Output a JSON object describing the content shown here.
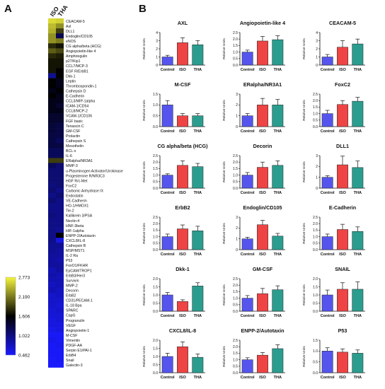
{
  "panels": {
    "a": "A",
    "b": "B"
  },
  "heatmap": {
    "columns": [
      "ISO",
      "THA"
    ],
    "rows": [
      "CEACAM-5",
      "Axl",
      "DLL1",
      "Endoglin/CD105",
      "eNOS",
      "CG alpha/beta (HCG)",
      "Angiopoietin-like 4",
      "Amphiregulin",
      "p27/Kip1",
      "CCL7/MCP-3",
      "EGF R/ErbB1",
      "Dkk-1",
      "Leptin",
      "Thrombospondin-1",
      "Cathepsin D",
      "E-Cadherin",
      "CCL3/MIP-1alpha",
      "ICAM-1/CD54",
      "CCL8/MCP-2",
      "VCAM-1/CD106",
      "FGF basic",
      "Tenascin C",
      "GM-CSF",
      "Prolactin",
      "Cathepsin S",
      "Mesothelin",
      "BCL-x",
      "IL-6",
      "ERalpha/NR3A1",
      "MMP-3",
      "u-Plasminogen Activator/Urokinase",
      "Progesterone R/NR3C3",
      "HGF R/c-Met",
      "FoxC2",
      "Carbonic Anhydrase IX",
      "Endostatin",
      "VE-Cadherin",
      "HO-1/HMOX1",
      "Tie-2",
      "Kallikrein 3/PSA",
      "Nectin-4",
      "HNF-3beta",
      "HIF-1alpha",
      "ENPP-2/Autotaxin",
      "CXCL8/IL-8",
      "Cathepsin B",
      "MSP/MST1",
      "IL-2 Ra",
      "P53",
      "FoxO1/FKHR",
      "EpCAM/TROP1",
      "ErbB3/Her3",
      "Survivin",
      "MMP-2",
      "Decorin",
      "ErbB2",
      "CD31/PECAM-1",
      "IL-18 Bpa",
      "SPARC",
      "CapG",
      "Progranulin",
      "VEGF",
      "Angiopoietin-1",
      "M-CSF",
      "Vimentin",
      "PDGF-AA",
      "Serpin E1/PAI-1",
      "ErbB4",
      "Snail",
      "Galectin-3"
    ],
    "values": [
      [
        2.65,
        2.6
      ],
      [
        2.5,
        2.3
      ],
      [
        2.45,
        1.9
      ],
      [
        2.3,
        1.25
      ],
      [
        2.3,
        2.2
      ],
      [
        1.8,
        1.7
      ],
      [
        2.05,
        1.95
      ],
      [
        1.8,
        1.75
      ],
      [
        1.7,
        1.7
      ],
      [
        1.7,
        1.7
      ],
      [
        1.7,
        1.6
      ],
      [
        0.95,
        1.6
      ],
      [
        1.6,
        1.5
      ],
      [
        1.6,
        1.5
      ],
      [
        1.5,
        1.6
      ],
      [
        1.6,
        1.5
      ],
      [
        1.5,
        1.5
      ],
      [
        1.5,
        1.4
      ],
      [
        1.5,
        1.5
      ],
      [
        1.4,
        1.4
      ],
      [
        1.4,
        1.4
      ],
      [
        1.35,
        1.3
      ],
      [
        1.35,
        1.3
      ],
      [
        1.3,
        1.3
      ],
      [
        1.3,
        1.2
      ],
      [
        1.3,
        1.3
      ],
      [
        1.2,
        1.2
      ],
      [
        1.2,
        1.2
      ],
      [
        1.9,
        1.9
      ],
      [
        1.2,
        1.1
      ],
      [
        1.1,
        1.1
      ],
      [
        1.1,
        1.1
      ],
      [
        1.1,
        1.1
      ],
      [
        1.05,
        1.1
      ],
      [
        1.1,
        1.0
      ],
      [
        1.0,
        1.1
      ],
      [
        1.1,
        1.0
      ],
      [
        1.0,
        1.0
      ],
      [
        1.0,
        1.0
      ],
      [
        1.05,
        1.0
      ],
      [
        1.0,
        1.0
      ],
      [
        1.0,
        1.0
      ],
      [
        1.0,
        0.95
      ],
      [
        1.0,
        1.6
      ],
      [
        1.0,
        0.6
      ],
      [
        0.95,
        0.95
      ],
      [
        0.95,
        0.9
      ],
      [
        0.9,
        0.9
      ],
      [
        0.9,
        0.85
      ],
      [
        0.9,
        0.9
      ],
      [
        0.8,
        0.9
      ],
      [
        0.85,
        0.8
      ],
      [
        0.8,
        0.8
      ],
      [
        0.75,
        0.8
      ],
      [
        0.8,
        0.75
      ],
      [
        0.7,
        0.75
      ],
      [
        0.7,
        0.7
      ],
      [
        0.7,
        0.65
      ],
      [
        0.65,
        0.7
      ],
      [
        0.65,
        0.65
      ],
      [
        0.6,
        0.65
      ],
      [
        0.6,
        0.6
      ],
      [
        0.55,
        0.6
      ],
      [
        0.5,
        0.5
      ],
      [
        0.55,
        0.5
      ],
      [
        0.5,
        0.55
      ],
      [
        0.5,
        0.5
      ],
      [
        0.5,
        0.5
      ],
      [
        0.48,
        0.5
      ],
      [
        0.47,
        0.47
      ]
    ]
  },
  "colorbar": {
    "ticks": [
      "2.773",
      "2.190",
      "1.606",
      "1.022",
      "0.462"
    ],
    "colors": [
      "#f5f53c",
      "#000000",
      "#1a1aff"
    ]
  },
  "chart_data": [
    {
      "type": "bar",
      "title": "AXL",
      "ylabel": "Relative Units",
      "categories": [
        "Control",
        "ISO",
        "THA"
      ],
      "values": [
        1.0,
        2.75,
        2.5
      ],
      "errors": [
        0.2,
        0.6,
        0.5
      ],
      "ylim": [
        0,
        4
      ],
      "yticks": [
        "0",
        "1",
        "2",
        "3",
        "4"
      ],
      "colors": [
        "#5555ee",
        "#ee4444",
        "#2a9d8f"
      ]
    },
    {
      "type": "bar",
      "title": "Angiopoietin-like 4",
      "ylabel": "Relative Units",
      "categories": [
        "Control",
        "ISO",
        "THA"
      ],
      "values": [
        1.0,
        1.85,
        1.95
      ],
      "errors": [
        0.15,
        0.35,
        0.3
      ],
      "ylim": [
        0,
        2.5
      ],
      "yticks": [
        "0.0",
        "0.5",
        "1.0",
        "1.5",
        "2.0",
        "2.5"
      ],
      "colors": [
        "#5555ee",
        "#ee4444",
        "#2a9d8f"
      ]
    },
    {
      "type": "bar",
      "title": "CEACAM-5",
      "ylabel": "Relative Units",
      "categories": [
        "Control",
        "ISO",
        "THA"
      ],
      "values": [
        1.0,
        2.2,
        2.6
      ],
      "errors": [
        0.3,
        0.8,
        0.6
      ],
      "ylim": [
        0,
        4
      ],
      "yticks": [
        "0",
        "1",
        "2",
        "3",
        "4"
      ],
      "colors": [
        "#5555ee",
        "#ee4444",
        "#2a9d8f"
      ]
    },
    {
      "type": "bar",
      "title": "M-CSF",
      "ylabel": "Relative Units",
      "categories": [
        "Control",
        "ISO",
        "THA"
      ],
      "values": [
        1.0,
        0.5,
        0.5
      ],
      "errors": [
        0.2,
        0.1,
        0.1
      ],
      "ylim": [
        0,
        1.5
      ],
      "yticks": [
        "0.0",
        "0.5",
        "1.0",
        "1.5"
      ],
      "colors": [
        "#5555ee",
        "#ee4444",
        "#2a9d8f"
      ]
    },
    {
      "type": "bar",
      "title": "ERalpha/NR3A1",
      "ylabel": "Relative Units",
      "categories": [
        "Control",
        "ISO",
        "THA"
      ],
      "values": [
        1.0,
        2.0,
        2.0
      ],
      "errors": [
        0.2,
        0.6,
        0.5
      ],
      "ylim": [
        0,
        3
      ],
      "yticks": [
        "0",
        "1",
        "2",
        "3"
      ],
      "colors": [
        "#5555ee",
        "#ee4444",
        "#2a9d8f"
      ]
    },
    {
      "type": "bar",
      "title": "FoxC2",
      "ylabel": "Relative Units",
      "categories": [
        "Control",
        "ISO",
        "THA"
      ],
      "values": [
        1.0,
        1.7,
        1.95
      ],
      "errors": [
        0.25,
        0.3,
        0.3
      ],
      "ylim": [
        0,
        2.5
      ],
      "yticks": [
        "0.0",
        "0.5",
        "1.0",
        "1.5",
        "2.0",
        "2.5"
      ],
      "colors": [
        "#5555ee",
        "#ee4444",
        "#2a9d8f"
      ]
    },
    {
      "type": "bar",
      "title": "CG alpha/beta (HCG)",
      "ylabel": "Relative Units",
      "categories": [
        "Control",
        "ISO",
        "THA"
      ],
      "values": [
        1.0,
        1.75,
        1.65
      ],
      "errors": [
        0.1,
        0.35,
        0.25
      ],
      "ylim": [
        0,
        2.5
      ],
      "yticks": [
        "0.0",
        "0.5",
        "1.0",
        "1.5",
        "2.0",
        "2.5"
      ],
      "colors": [
        "#5555ee",
        "#ee4444",
        "#2a9d8f"
      ]
    },
    {
      "type": "bar",
      "title": "Decorin",
      "ylabel": "Relative Units",
      "categories": [
        "Control",
        "ISO",
        "THA"
      ],
      "values": [
        1.0,
        1.6,
        1.75
      ],
      "errors": [
        0.2,
        0.4,
        0.35
      ],
      "ylim": [
        0,
        2.5
      ],
      "yticks": [
        "0.0",
        "0.5",
        "1.0",
        "1.5",
        "2.0",
        "2.5"
      ],
      "colors": [
        "#5555ee",
        "#ee4444",
        "#2a9d8f"
      ]
    },
    {
      "type": "bar",
      "title": "DLL1",
      "ylabel": "Relative Units",
      "categories": [
        "Control",
        "ISO",
        "THA"
      ],
      "values": [
        1.0,
        2.15,
        1.9
      ],
      "errors": [
        0.15,
        0.8,
        0.6
      ],
      "ylim": [
        0,
        3
      ],
      "yticks": [
        "0",
        "1",
        "2",
        "3"
      ],
      "colors": [
        "#5555ee",
        "#ee4444",
        "#2a9d8f"
      ]
    },
    {
      "type": "bar",
      "title": "ErbB2",
      "ylabel": "Relative Units",
      "categories": [
        "Control",
        "ISO",
        "THA"
      ],
      "values": [
        1.0,
        1.6,
        1.45
      ],
      "errors": [
        0.2,
        0.3,
        0.35
      ],
      "ylim": [
        0,
        2.5
      ],
      "yticks": [
        "0.0",
        "0.5",
        "1.0",
        "1.5",
        "2.0",
        "2.5"
      ],
      "colors": [
        "#5555ee",
        "#ee4444",
        "#2a9d8f"
      ]
    },
    {
      "type": "bar",
      "title": "Endoglin/CD105",
      "ylabel": "Relative Units",
      "categories": [
        "Control",
        "ISO",
        "THA"
      ],
      "values": [
        1.0,
        2.3,
        1.25
      ],
      "errors": [
        0.15,
        0.4,
        0.25
      ],
      "ylim": [
        0,
        3
      ],
      "yticks": [
        "0",
        "1",
        "2",
        "3"
      ],
      "colors": [
        "#5555ee",
        "#ee4444",
        "#2a9d8f"
      ]
    },
    {
      "type": "bar",
      "title": "E-Cadherin",
      "ylabel": "Relative Units",
      "categories": [
        "Control",
        "ISO",
        "THA"
      ],
      "values": [
        1.0,
        1.55,
        1.4
      ],
      "errors": [
        0.2,
        0.4,
        0.35
      ],
      "ylim": [
        0,
        2.5
      ],
      "yticks": [
        "0.0",
        "0.5",
        "1.0",
        "1.5",
        "2.0",
        "2.5"
      ],
      "colors": [
        "#5555ee",
        "#ee4444",
        "#2a9d8f"
      ]
    },
    {
      "type": "bar",
      "title": "Dkk-1",
      "ylabel": "Relative Units",
      "categories": [
        "Control",
        "ISO",
        "THA"
      ],
      "values": [
        1.0,
        0.6,
        1.55
      ],
      "errors": [
        0.15,
        0.1,
        0.2
      ],
      "ylim": [
        0,
        2
      ],
      "yticks": [
        "0.0",
        "0.5",
        "1.0",
        "1.5",
        "2.0"
      ],
      "colors": [
        "#5555ee",
        "#ee4444",
        "#2a9d8f"
      ]
    },
    {
      "type": "bar",
      "title": "GM-CSF",
      "ylabel": "Relative Units",
      "categories": [
        "Control",
        "ISO",
        "THA"
      ],
      "values": [
        1.0,
        1.35,
        1.65
      ],
      "errors": [
        0.2,
        0.4,
        0.3
      ],
      "ylim": [
        0,
        2.5
      ],
      "yticks": [
        "0.0",
        "0.5",
        "1.0",
        "1.5",
        "2.0",
        "2.5"
      ],
      "colors": [
        "#5555ee",
        "#ee4444",
        "#2a9d8f"
      ]
    },
    {
      "type": "bar",
      "title": "SNAIL",
      "ylabel": "Relative Units",
      "categories": [
        "Control",
        "ISO",
        "THA"
      ],
      "values": [
        1.0,
        1.35,
        1.35
      ],
      "errors": [
        0.3,
        0.4,
        0.45
      ],
      "ylim": [
        0,
        2
      ],
      "yticks": [
        "0.0",
        "0.5",
        "1.0",
        "1.5",
        "2.0"
      ],
      "colors": [
        "#5555ee",
        "#ee4444",
        "#2a9d8f"
      ]
    },
    {
      "type": "bar",
      "title": "CXCL8/IL-8",
      "ylabel": "Relative Units",
      "categories": [
        "Control",
        "ISO",
        "THA"
      ],
      "values": [
        1.0,
        1.6,
        0.95
      ],
      "errors": [
        0.2,
        0.3,
        0.2
      ],
      "ylim": [
        0,
        2
      ],
      "yticks": [
        "0.0",
        "0.5",
        "1.0",
        "1.5",
        "2.0"
      ],
      "colors": [
        "#5555ee",
        "#ee4444",
        "#2a9d8f"
      ]
    },
    {
      "type": "bar",
      "title": "ENPP-2/Autotaxin",
      "ylabel": "Relative Units",
      "categories": [
        "Control",
        "ISO",
        "THA"
      ],
      "values": [
        1.0,
        1.35,
        1.85
      ],
      "errors": [
        0.15,
        0.2,
        0.3
      ],
      "ylim": [
        0,
        2.5
      ],
      "yticks": [
        "0.0",
        "0.5",
        "1.0",
        "1.5",
        "2.0",
        "2.5"
      ],
      "colors": [
        "#5555ee",
        "#ee4444",
        "#2a9d8f"
      ]
    },
    {
      "type": "bar",
      "title": "P53",
      "ylabel": "Relative Units",
      "categories": [
        "Control",
        "ISO",
        "THA"
      ],
      "values": [
        1.0,
        0.95,
        0.9
      ],
      "errors": [
        0.15,
        0.15,
        0.15
      ],
      "ylim": [
        0,
        1.5
      ],
      "yticks": [
        "0.0",
        "0.5",
        "1.0",
        "1.5"
      ],
      "colors": [
        "#5555ee",
        "#ee4444",
        "#2a9d8f"
      ]
    }
  ]
}
